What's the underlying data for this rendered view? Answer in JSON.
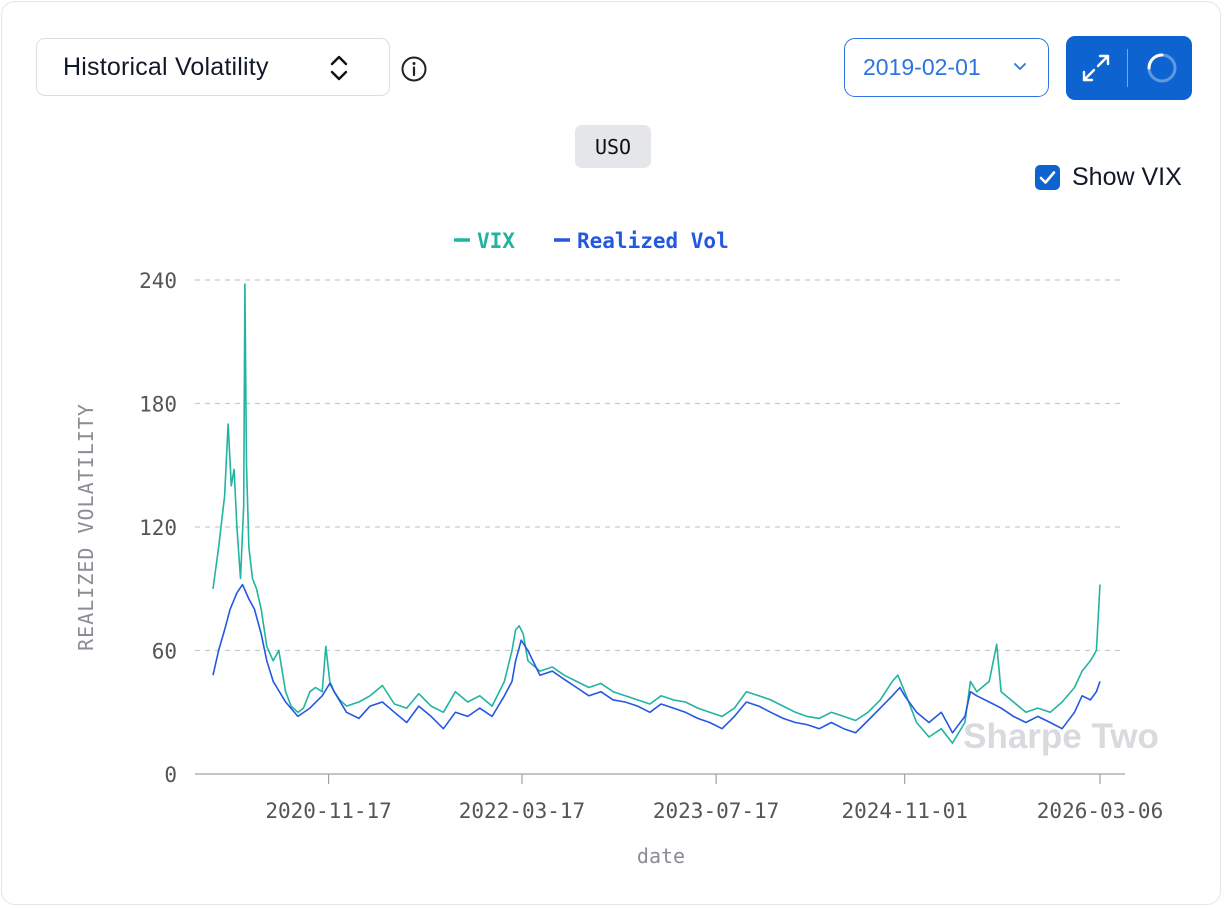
{
  "header": {
    "metric_label": "Historical Volatility",
    "date_value": "2019-02-01",
    "ticker": "USO",
    "show_vix_label": "Show VIX",
    "show_vix_checked": true
  },
  "watermark": "Sharpe Two",
  "colors": {
    "vix": "#22b3a1",
    "realized": "#2458e0",
    "accent": "#0d63cf"
  },
  "chart_data": {
    "type": "line",
    "title": "",
    "xlabel": "date",
    "ylabel": "REALIZED VOLATILITY",
    "ylim": [
      0,
      240
    ],
    "y_ticks": [
      0,
      60,
      120,
      180,
      240
    ],
    "x_ticks": [
      "2020-11-17",
      "2022-03-17",
      "2023-07-17",
      "2024-11-01",
      "2026-03-06"
    ],
    "x_range": [
      "2020-02-01",
      "2026-03-06"
    ],
    "grid": "horizontal dashed",
    "legend_position": "top-center",
    "series": [
      {
        "name": "VIX",
        "color": "#22b3a1",
        "points": [
          [
            "2020-02-01",
            90
          ],
          [
            "2020-02-15",
            110
          ],
          [
            "2020-03-01",
            135
          ],
          [
            "2020-03-10",
            170
          ],
          [
            "2020-03-18",
            140
          ],
          [
            "2020-03-25",
            148
          ],
          [
            "2020-04-01",
            120
          ],
          [
            "2020-04-10",
            95
          ],
          [
            "2020-04-18",
            130
          ],
          [
            "2020-04-21",
            238
          ],
          [
            "2020-04-25",
            150
          ],
          [
            "2020-05-01",
            110
          ],
          [
            "2020-05-10",
            95
          ],
          [
            "2020-05-20",
            90
          ],
          [
            "2020-06-01",
            80
          ],
          [
            "2020-06-15",
            62
          ],
          [
            "2020-07-01",
            55
          ],
          [
            "2020-07-15",
            60
          ],
          [
            "2020-08-01",
            40
          ],
          [
            "2020-08-15",
            33
          ],
          [
            "2020-09-01",
            30
          ],
          [
            "2020-09-15",
            32
          ],
          [
            "2020-10-01",
            40
          ],
          [
            "2020-10-15",
            42
          ],
          [
            "2020-11-01",
            40
          ],
          [
            "2020-11-10",
            62
          ],
          [
            "2020-11-20",
            45
          ],
          [
            "2020-12-01",
            40
          ],
          [
            "2020-12-15",
            36
          ],
          [
            "2021-01-01",
            33
          ],
          [
            "2021-02-01",
            35
          ],
          [
            "2021-03-01",
            38
          ],
          [
            "2021-04-01",
            43
          ],
          [
            "2021-05-01",
            34
          ],
          [
            "2021-06-01",
            32
          ],
          [
            "2021-07-01",
            39
          ],
          [
            "2021-08-01",
            33
          ],
          [
            "2021-09-01",
            30
          ],
          [
            "2021-10-01",
            40
          ],
          [
            "2021-11-01",
            35
          ],
          [
            "2021-12-01",
            38
          ],
          [
            "2022-01-01",
            33
          ],
          [
            "2022-02-01",
            45
          ],
          [
            "2022-02-20",
            60
          ],
          [
            "2022-03-01",
            70
          ],
          [
            "2022-03-10",
            72
          ],
          [
            "2022-03-20",
            68
          ],
          [
            "2022-04-01",
            55
          ],
          [
            "2022-05-01",
            50
          ],
          [
            "2022-06-01",
            52
          ],
          [
            "2022-07-01",
            48
          ],
          [
            "2022-08-01",
            45
          ],
          [
            "2022-09-01",
            42
          ],
          [
            "2022-10-01",
            44
          ],
          [
            "2022-11-01",
            40
          ],
          [
            "2022-12-01",
            38
          ],
          [
            "2023-01-01",
            36
          ],
          [
            "2023-02-01",
            34
          ],
          [
            "2023-03-01",
            38
          ],
          [
            "2023-04-01",
            36
          ],
          [
            "2023-05-01",
            35
          ],
          [
            "2023-06-01",
            32
          ],
          [
            "2023-07-01",
            30
          ],
          [
            "2023-08-01",
            28
          ],
          [
            "2023-09-01",
            32
          ],
          [
            "2023-10-01",
            40
          ],
          [
            "2023-11-01",
            38
          ],
          [
            "2023-12-01",
            36
          ],
          [
            "2024-01-01",
            33
          ],
          [
            "2024-02-01",
            30
          ],
          [
            "2024-03-01",
            28
          ],
          [
            "2024-04-01",
            27
          ],
          [
            "2024-05-01",
            30
          ],
          [
            "2024-06-01",
            28
          ],
          [
            "2024-07-01",
            26
          ],
          [
            "2024-08-01",
            30
          ],
          [
            "2024-09-01",
            36
          ],
          [
            "2024-10-01",
            45
          ],
          [
            "2024-10-15",
            48
          ],
          [
            "2024-11-01",
            40
          ],
          [
            "2024-12-01",
            25
          ],
          [
            "2025-01-01",
            18
          ],
          [
            "2025-02-01",
            22
          ],
          [
            "2025-03-01",
            15
          ],
          [
            "2025-04-01",
            25
          ],
          [
            "2025-04-15",
            45
          ],
          [
            "2025-05-01",
            40
          ],
          [
            "2025-06-01",
            45
          ],
          [
            "2025-06-20",
            63
          ],
          [
            "2025-07-01",
            40
          ],
          [
            "2025-08-01",
            35
          ],
          [
            "2025-09-01",
            30
          ],
          [
            "2025-10-01",
            32
          ],
          [
            "2025-11-01",
            30
          ],
          [
            "2025-12-01",
            35
          ],
          [
            "2026-01-01",
            42
          ],
          [
            "2026-01-20",
            50
          ],
          [
            "2026-02-10",
            55
          ],
          [
            "2026-02-25",
            60
          ],
          [
            "2026-03-06",
            92
          ]
        ]
      },
      {
        "name": "Realized Vol",
        "color": "#2458e0",
        "points": [
          [
            "2020-02-01",
            48
          ],
          [
            "2020-02-15",
            60
          ],
          [
            "2020-03-01",
            70
          ],
          [
            "2020-03-15",
            80
          ],
          [
            "2020-04-01",
            88
          ],
          [
            "2020-04-15",
            92
          ],
          [
            "2020-05-01",
            85
          ],
          [
            "2020-05-15",
            80
          ],
          [
            "2020-06-01",
            68
          ],
          [
            "2020-06-15",
            55
          ],
          [
            "2020-07-01",
            45
          ],
          [
            "2020-08-01",
            35
          ],
          [
            "2020-09-01",
            28
          ],
          [
            "2020-10-01",
            32
          ],
          [
            "2020-11-01",
            38
          ],
          [
            "2020-11-20",
            44
          ],
          [
            "2020-12-01",
            40
          ],
          [
            "2021-01-01",
            30
          ],
          [
            "2021-02-01",
            27
          ],
          [
            "2021-03-01",
            33
          ],
          [
            "2021-04-01",
            35
          ],
          [
            "2021-05-01",
            30
          ],
          [
            "2021-06-01",
            25
          ],
          [
            "2021-07-01",
            33
          ],
          [
            "2021-08-01",
            28
          ],
          [
            "2021-09-01",
            22
          ],
          [
            "2021-10-01",
            30
          ],
          [
            "2021-11-01",
            28
          ],
          [
            "2021-12-01",
            32
          ],
          [
            "2022-01-01",
            28
          ],
          [
            "2022-02-01",
            38
          ],
          [
            "2022-02-20",
            45
          ],
          [
            "2022-03-01",
            55
          ],
          [
            "2022-03-15",
            65
          ],
          [
            "2022-04-01",
            60
          ],
          [
            "2022-05-01",
            48
          ],
          [
            "2022-06-01",
            50
          ],
          [
            "2022-07-01",
            46
          ],
          [
            "2022-08-01",
            42
          ],
          [
            "2022-09-01",
            38
          ],
          [
            "2022-10-01",
            40
          ],
          [
            "2022-11-01",
            36
          ],
          [
            "2022-12-01",
            35
          ],
          [
            "2023-01-01",
            33
          ],
          [
            "2023-02-01",
            30
          ],
          [
            "2023-03-01",
            34
          ],
          [
            "2023-04-01",
            32
          ],
          [
            "2023-05-01",
            30
          ],
          [
            "2023-06-01",
            27
          ],
          [
            "2023-07-01",
            25
          ],
          [
            "2023-08-01",
            22
          ],
          [
            "2023-09-01",
            28
          ],
          [
            "2023-10-01",
            35
          ],
          [
            "2023-11-01",
            33
          ],
          [
            "2023-12-01",
            30
          ],
          [
            "2024-01-01",
            27
          ],
          [
            "2024-02-01",
            25
          ],
          [
            "2024-03-01",
            24
          ],
          [
            "2024-04-01",
            22
          ],
          [
            "2024-05-01",
            25
          ],
          [
            "2024-06-01",
            22
          ],
          [
            "2024-07-01",
            20
          ],
          [
            "2024-08-01",
            26
          ],
          [
            "2024-09-01",
            32
          ],
          [
            "2024-10-01",
            38
          ],
          [
            "2024-10-20",
            42
          ],
          [
            "2024-11-01",
            38
          ],
          [
            "2024-12-01",
            30
          ],
          [
            "2025-01-01",
            25
          ],
          [
            "2025-02-01",
            30
          ],
          [
            "2025-03-01",
            20
          ],
          [
            "2025-04-01",
            28
          ],
          [
            "2025-04-15",
            40
          ],
          [
            "2025-05-01",
            38
          ],
          [
            "2025-06-01",
            35
          ],
          [
            "2025-07-01",
            32
          ],
          [
            "2025-08-01",
            28
          ],
          [
            "2025-09-01",
            25
          ],
          [
            "2025-10-01",
            28
          ],
          [
            "2025-11-01",
            25
          ],
          [
            "2025-12-01",
            22
          ],
          [
            "2026-01-01",
            30
          ],
          [
            "2026-01-20",
            38
          ],
          [
            "2026-02-10",
            36
          ],
          [
            "2026-02-25",
            40
          ],
          [
            "2026-03-06",
            45
          ]
        ]
      }
    ]
  }
}
